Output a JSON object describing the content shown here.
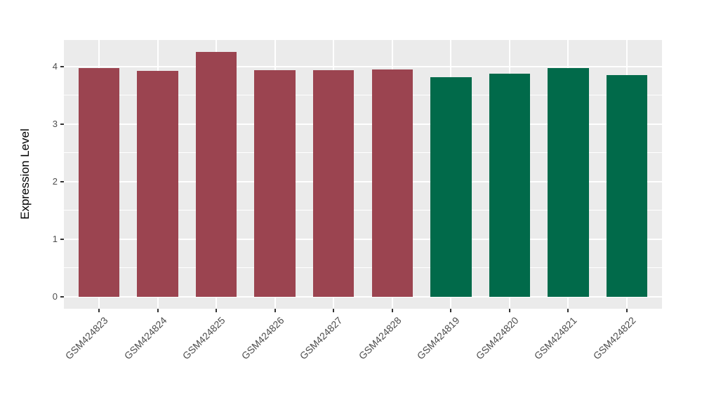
{
  "chart_data": {
    "type": "bar",
    "title": "",
    "xlabel": "",
    "ylabel": "Expression Level",
    "categories": [
      "GSM424823",
      "GSM424824",
      "GSM424825",
      "GSM424826",
      "GSM424827",
      "GSM424828",
      "GSM424819",
      "GSM424820",
      "GSM424821",
      "GSM424822"
    ],
    "values": [
      3.98,
      3.93,
      4.25,
      3.94,
      3.94,
      3.95,
      3.82,
      3.88,
      3.97,
      3.85
    ],
    "bar_colors": [
      "#9B4450",
      "#9B4450",
      "#9B4450",
      "#9B4450",
      "#9B4450",
      "#9B4450",
      "#016A4A",
      "#016A4A",
      "#016A4A",
      "#016A4A"
    ],
    "group_colors": {
      "maroon_group": "#9B4450",
      "green_group": "#016A4A"
    },
    "yticks": [
      0,
      1,
      2,
      3,
      4
    ],
    "y_minor_ticks": [
      0.5,
      1.5,
      2.5,
      3.5
    ],
    "ylim": [
      0,
      4.25
    ],
    "ylim_display": [
      -0.2125,
      4.4625
    ],
    "x_range_units": [
      0.4,
      10.6
    ],
    "bar_width_fraction": 0.7,
    "grid": "on",
    "legend": "none",
    "panel_bg": "#EBEBEB",
    "grid_color": "#FFFFFF",
    "tick_color": "#333333",
    "tick_label_color": "#4d4d4d",
    "axis_title_color": "#000000"
  }
}
